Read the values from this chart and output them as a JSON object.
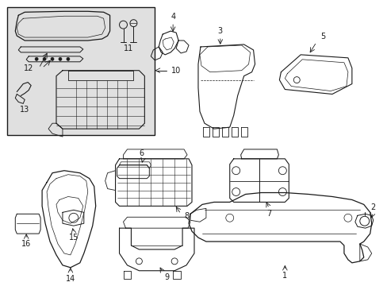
{
  "bg_color": "#ffffff",
  "box_bg": "#e0e0e0",
  "lc": "#1a1a1a",
  "lw": 0.8,
  "figsize": [
    4.89,
    3.6
  ],
  "dpi": 100
}
